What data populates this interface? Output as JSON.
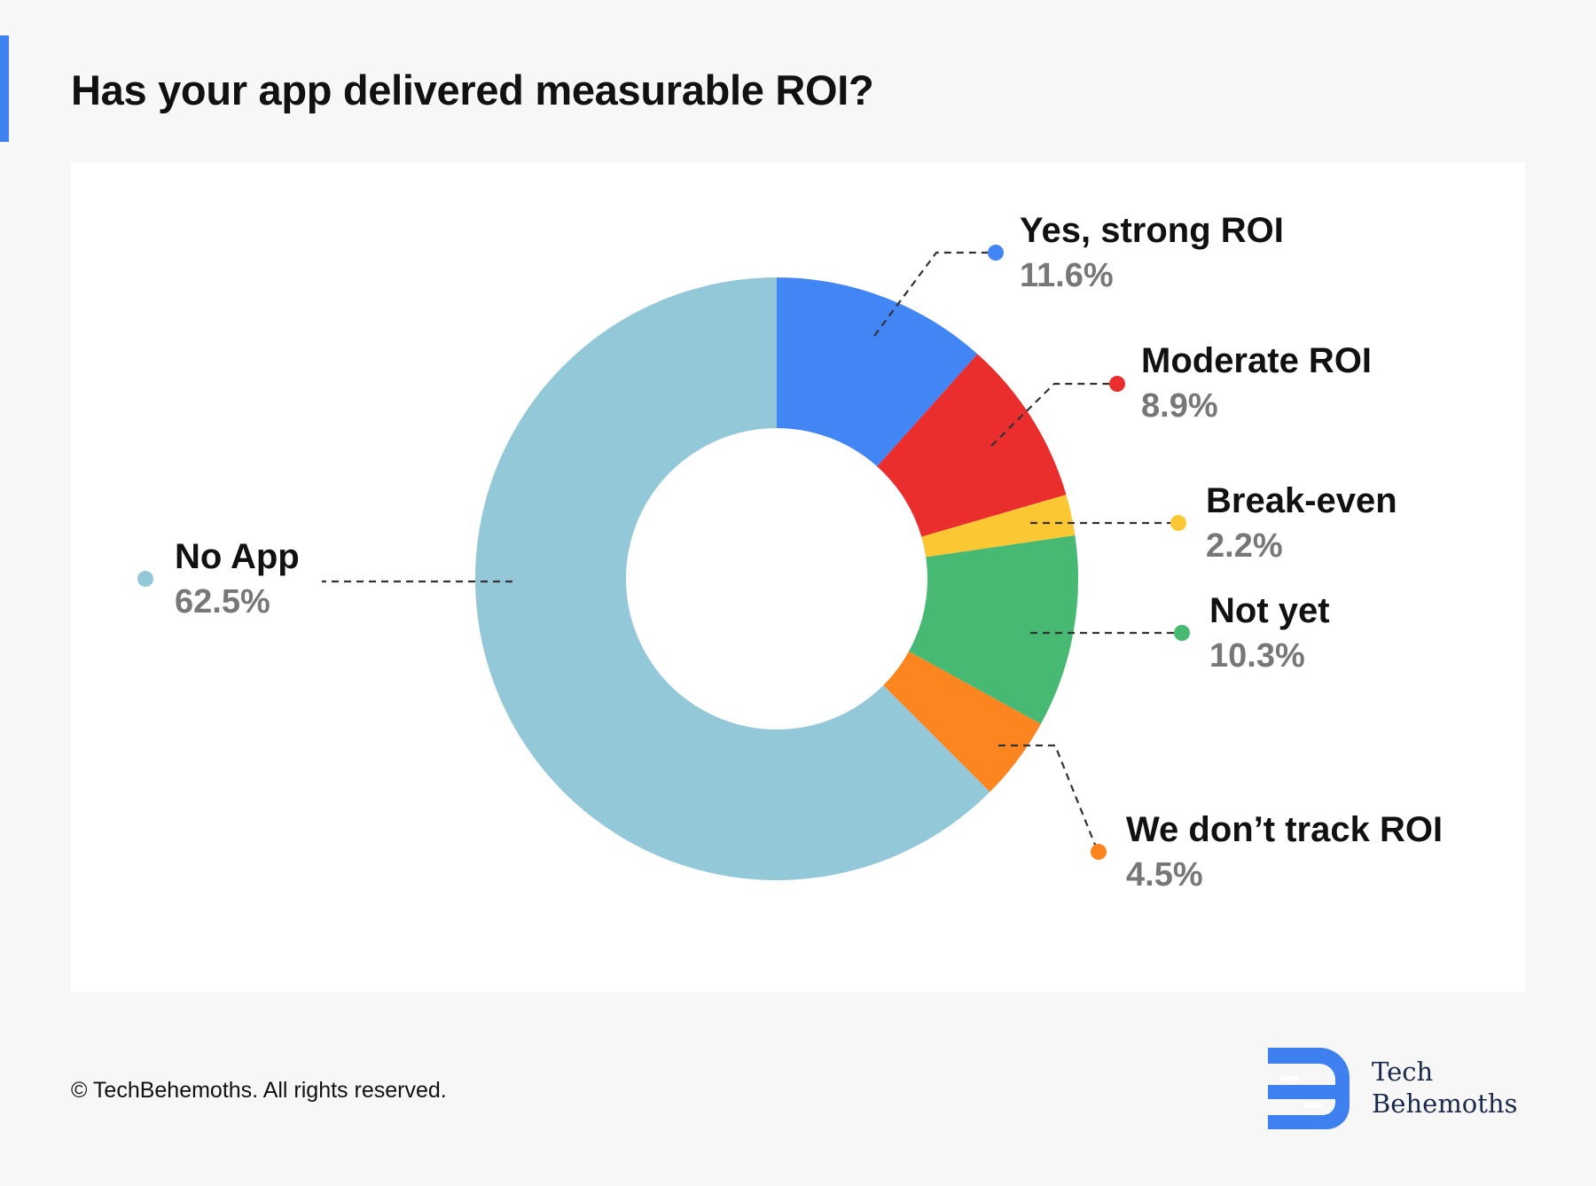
{
  "title": "Has your app delivered measurable ROI?",
  "footer": "© TechBehemoths. All rights reserved.",
  "logo": {
    "line1": "Tech",
    "line2": "Behemoths",
    "color": "#3f80f1"
  },
  "colors": {
    "accent": "#3f80f1",
    "label": "#111111",
    "value": "#777777",
    "leader": "#333333"
  },
  "chart_data": {
    "type": "pie",
    "variant": "donut",
    "title": "Has your app delivered measurable ROI?",
    "slices": [
      {
        "label": "Yes, strong ROI",
        "value": 11.6,
        "display": "11.6%",
        "color": "#4285f4"
      },
      {
        "label": "Moderate ROI",
        "value": 8.9,
        "display": "8.9%",
        "color": "#ea2e2e"
      },
      {
        "label": "Break-even",
        "value": 2.2,
        "display": "2.2%",
        "color": "#fbc834"
      },
      {
        "label": "Not yet",
        "value": 10.3,
        "display": "10.3%",
        "color": "#47b972"
      },
      {
        "label": "We don’t track ROI",
        "value": 4.5,
        "display": "4.5%",
        "color": "#fd851f"
      },
      {
        "label": "No App",
        "value": 62.5,
        "display": "62.5%",
        "color": "#93c8d9"
      }
    ],
    "legend": "none",
    "labels": "outside-with-leader-lines"
  }
}
